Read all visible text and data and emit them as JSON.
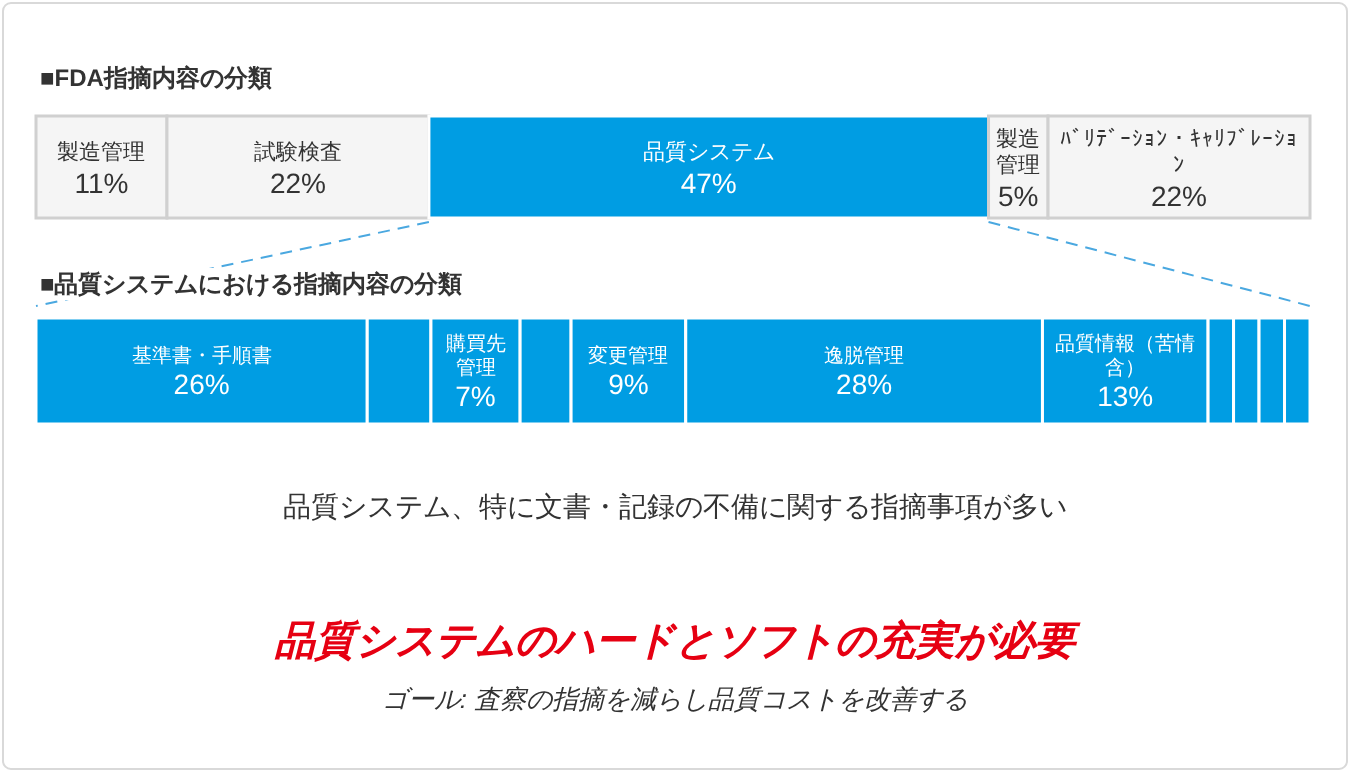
{
  "chart_data": [
    {
      "type": "bar",
      "orientation": "horizontal",
      "stacked": true,
      "title": "■FDA指摘内容の分類",
      "categories": [
        null
      ],
      "series": [
        {
          "name": "製造管理",
          "color": "#f5f5f5",
          "values": [
            11
          ],
          "value_labels": [
            "11%"
          ]
        },
        {
          "name": "試験検査",
          "color": "#f5f5f5",
          "values": [
            22
          ],
          "value_labels": [
            "22%"
          ]
        },
        {
          "name": "品質システム",
          "color": "#009de3",
          "values": [
            47
          ],
          "value_labels": [
            "47%"
          ]
        },
        {
          "name": "製造管理",
          "color": "#f5f5f5",
          "values": [
            5
          ],
          "value_labels": [
            "5%"
          ]
        },
        {
          "name": "ﾊﾞﾘﾃﾞｰｼｮﾝ・ｷｬﾘﾌﾞﾚｰｼｮﾝ",
          "color": "#f5f5f5",
          "values": [
            22
          ],
          "value_labels": [
            "22%"
          ]
        }
      ]
    },
    {
      "type": "bar",
      "orientation": "horizontal",
      "stacked": true,
      "title": "■品質システムにおける指摘内容の分類",
      "categories": [
        null
      ],
      "series": [
        {
          "name": "基準書・手順書",
          "color": "#009de3",
          "values": [
            26
          ],
          "value_labels": [
            "26%"
          ]
        },
        {
          "color": "#009de3",
          "values": [
            5
          ]
        },
        {
          "name": "購買先管理",
          "color": "#009de3",
          "values": [
            7
          ],
          "value_labels": [
            "7%"
          ]
        },
        {
          "color": "#009de3",
          "values": [
            4
          ]
        },
        {
          "name": "変更管理",
          "color": "#009de3",
          "values": [
            9
          ],
          "value_labels": [
            "9%"
          ]
        },
        {
          "name": "逸脱管理",
          "color": "#009de3",
          "values": [
            28
          ],
          "value_labels": [
            "28%"
          ]
        },
        {
          "name": "品質情報（苦情含）",
          "color": "#009de3",
          "values": [
            13
          ],
          "value_labels": [
            "13%"
          ]
        },
        {
          "color": "#009de3",
          "values": [
            2
          ]
        },
        {
          "color": "#009de3",
          "values": [
            2
          ]
        },
        {
          "color": "#009de3",
          "values": [
            2
          ]
        },
        {
          "color": "#009de3",
          "values": [
            2
          ]
        }
      ],
      "annotations": [
        "品質システム、特に文書・記録の不備に関する指摘事項が多い",
        "品質システムのハードとソフトの充実が必要",
        "ゴール: 査察の指摘を減らし品質コストを改善する"
      ]
    }
  ]
}
